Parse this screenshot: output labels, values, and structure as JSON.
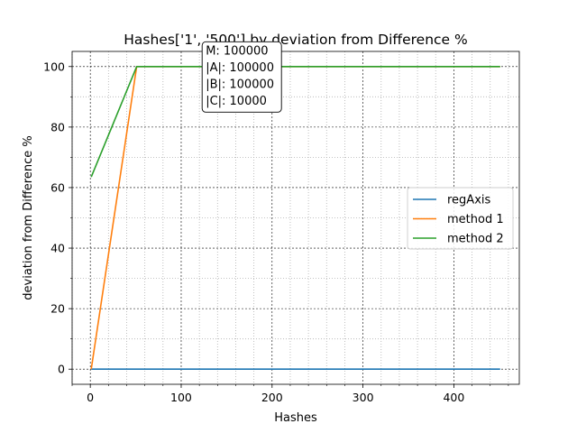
{
  "chart_data": {
    "type": "line",
    "title": "Hashes['1', '500'] by deviation from Difference %",
    "xlabel": "Hashes",
    "ylabel": "deviation from Difference %",
    "xlim": [
      -20,
      472
    ],
    "ylim": [
      -5,
      105
    ],
    "x_major_ticks": [
      0,
      100,
      200,
      300,
      400
    ],
    "y_major_ticks": [
      0,
      20,
      40,
      60,
      80,
      100
    ],
    "x_minor_step": 20,
    "y_minor_step": 10,
    "grid": "major dashed black, minor dotted gray",
    "legend": {
      "placement": "center-right"
    },
    "series": [
      {
        "name": "regAxis",
        "color": "#1f77b4",
        "x": [
          1,
          451
        ],
        "y": [
          0,
          0
        ]
      },
      {
        "name": "method 1",
        "color": "#ff7f0e",
        "x": [
          1,
          51,
          451
        ],
        "y": [
          0,
          100,
          100
        ]
      },
      {
        "name": "method 2",
        "color": "#2ca02c",
        "x": [
          1,
          51,
          451
        ],
        "y": [
          63.5,
          100,
          100
        ]
      }
    ],
    "annotation": {
      "lines": [
        "M: 100000",
        "|A|: 100000",
        "|B|: 100000",
        "|C|: 10000"
      ],
      "anchor": {
        "x": 127,
        "y": 104
      }
    }
  }
}
